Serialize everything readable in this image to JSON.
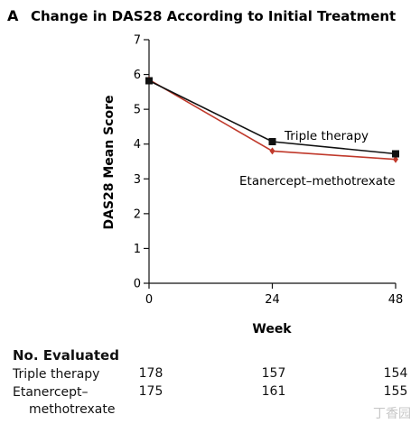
{
  "panel_letter": "A",
  "chart_data": {
    "type": "line",
    "title": "Change in DAS28 According to Initial Treatment",
    "xlabel": "Week",
    "ylabel": "DAS28 Mean Score",
    "x": [
      0,
      24,
      48
    ],
    "xlim": [
      0,
      48
    ],
    "ylim": [
      0,
      7
    ],
    "xticks": [
      "0",
      "24",
      "48"
    ],
    "yticks": [
      "0",
      "1",
      "2",
      "3",
      "4",
      "5",
      "6",
      "7"
    ],
    "grid": false,
    "series": [
      {
        "name": "Triple therapy",
        "values": [
          5.82,
          4.07,
          3.72
        ],
        "err": [
          0.08,
          0.08,
          0.09
        ],
        "color": "#111111",
        "marker": "square"
      },
      {
        "name": "Etanercept–methotrexate",
        "values": [
          5.85,
          3.8,
          3.56
        ],
        "err": [
          0.08,
          0.08,
          0.09
        ],
        "color": "#c0392b",
        "marker": "diamond"
      }
    ]
  },
  "evaluated": {
    "title": "No. Evaluated",
    "rows": [
      {
        "label_line1": "Triple therapy",
        "label_line2": "",
        "values": [
          "178",
          "157",
          "154"
        ]
      },
      {
        "label_line1": "Etanercept–",
        "label_line2": "methotrexate",
        "values": [
          "175",
          "161",
          "155"
        ]
      }
    ]
  },
  "watermark": "丁香园"
}
